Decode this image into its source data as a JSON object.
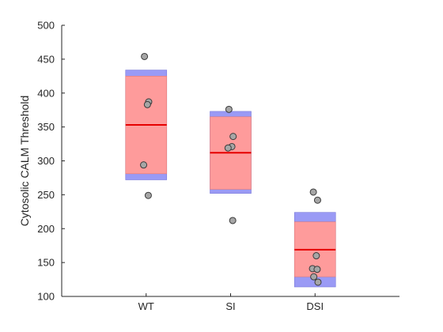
{
  "chart_data": {
    "type": "scatter",
    "subtype": "box-with-points",
    "title": "",
    "xlabel": "",
    "ylabel": "Cytosolic CALM Threshold",
    "ylim": [
      100,
      500
    ],
    "yticks": [
      100,
      150,
      200,
      250,
      300,
      350,
      400,
      450,
      500
    ],
    "categories": [
      "WT",
      "SI",
      "DSI"
    ],
    "grid": false,
    "legend": "none",
    "colors": {
      "sd_band": "#9a9af5",
      "ci_band": "#fe9b9b",
      "mean_line": "#e60000",
      "point_fill": "#a6a6a6",
      "point_edge": "#3a3a3a",
      "axis": "#262626"
    },
    "groups": [
      {
        "name": "WT",
        "mean": 353,
        "ci": [
          281,
          425
        ],
        "sd": [
          272,
          434
        ],
        "points": [
          454,
          387,
          383,
          294,
          249
        ]
      },
      {
        "name": "SI",
        "mean": 312,
        "ci": [
          258,
          365
        ],
        "sd": [
          252,
          373
        ],
        "points": [
          376,
          336,
          321,
          319,
          212
        ]
      },
      {
        "name": "DSI",
        "mean": 169,
        "ci": [
          129,
          210
        ],
        "sd": [
          114,
          224
        ],
        "points": [
          254,
          242,
          160,
          141,
          140,
          129,
          121
        ]
      }
    ]
  }
}
